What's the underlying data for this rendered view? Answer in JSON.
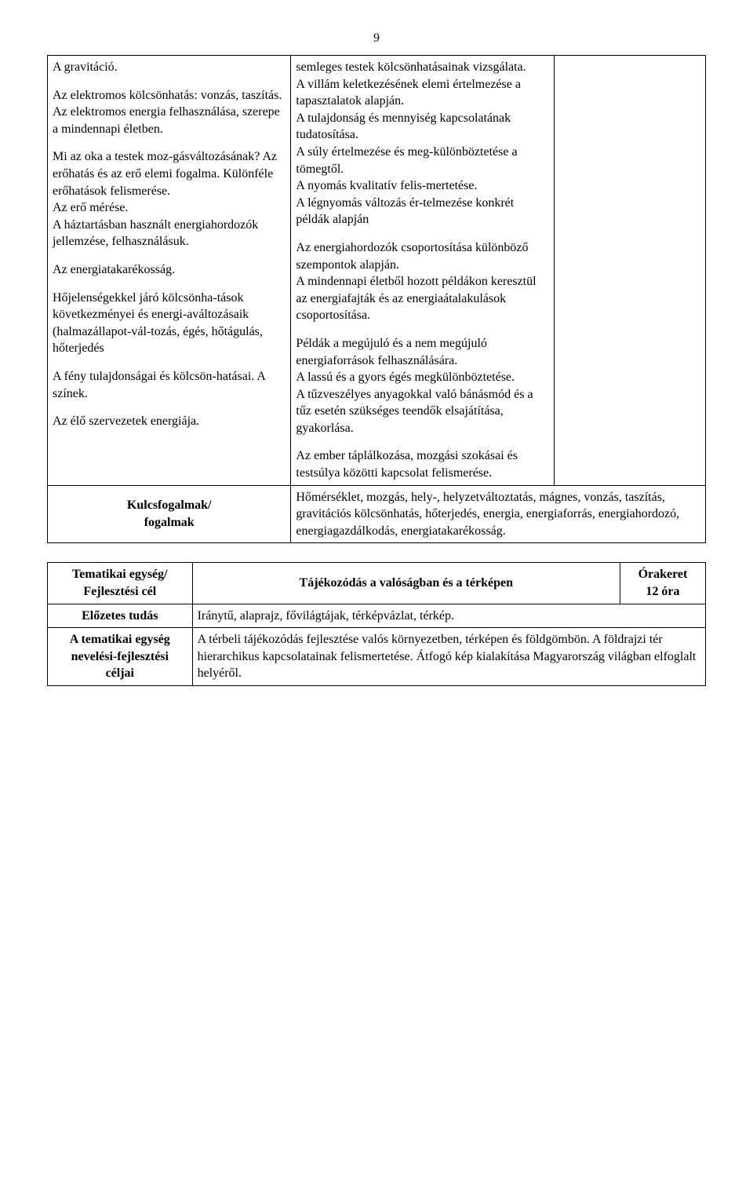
{
  "page_number": "9",
  "main_table": {
    "col1": {
      "p1": "A gravitáció.",
      "p2": "Az elektromos kölcsönhatás: vonzás, taszítás. Az elektromos energia felhasználása, szerepe a mindennapi életben.",
      "p3": "Mi az oka a testek moz-gásváltozásának? Az erőhatás és az erő elemi fogalma. Különféle erőhatások felismerése.",
      "p4": "Az erő mérése.",
      "p5": "A háztartásban használt energiahordozók jellemzése, felhasználásuk.",
      "p6": "Az energiatakarékosság.",
      "p7": "Hőjelenségekkel járó kölcsönha-tások következményei és energi-aváltozásaik (halmazállapot-vál-tozás, égés, hőtágulás, hőterjedés",
      "p8": "A fény tulajdonságai és kölcsön-hatásai. A színek.",
      "p9": "Az élő szervezetek energiája."
    },
    "col2": {
      "p1": "semleges testek kölcsönhatásainak vizsgálata.",
      "p2": "A villám keletkezésének elemi értelmezése a tapasztalatok alapján.",
      "p3": "A tulajdonság és mennyiség kapcsolatának tudatosítása.",
      "p4": "A súly értelmezése és meg-különböztetése a tömegtől.",
      "p5": "A nyomás kvalitatív felis-mertetése.",
      "p6": "A légnyomás változás ér-telmezése konkrét példák alapján",
      "p7": "Az energiahordozók csoportosítása különböző szempontok alapján.",
      "p8": "A mindennapi életből hozott példákon keresztül az energiafajták és az energiaátalakulások csoportosítása.",
      "p9": "Példák a megújuló és a nem megújuló energiaforrások felhasználására.",
      "p10": "A lassú és a gyors égés megkülönböztetése.",
      "p11": "A tűzveszélyes anyagokkal való bánásmód és a tűz esetén szükséges teendők elsajátítása, gyakorlása.",
      "p12": "Az ember táplálkozása, mozgási szokásai és testsúlya közötti kapcsolat felismerése."
    },
    "kf_label_line1": "Kulcsfogalmak/",
    "kf_label_line2": "fogalmak",
    "kf_content": "Hőmérséklet, mozgás, hely-, helyzetváltoztatás, mágnes, vonzás, taszítás, gravitációs kölcsönhatás, hőterjedés, energia, energiaforrás, energiahordozó, energiagazdálkodás, energiatakarékosság."
  },
  "second_table": {
    "r1c1_line1": "Tematikai egység/",
    "r1c1_line2": "Fejlesztési cél",
    "r1c2": "Tájékozódás a valóságban és a térképen",
    "r1c3_line1": "Órakeret",
    "r1c3_line2": "12 óra",
    "r2c1": "Előzetes tudás",
    "r2c2": "Iránytű, alaprajz, fővilágtájak, térképvázlat, térkép.",
    "r3c1_line1": "A tematikai egység",
    "r3c1_line2": "nevelési-fejlesztési",
    "r3c1_line3": "céljai",
    "r3c2": "A térbeli tájékozódás fejlesztése valós környezetben, térképen és földgömbön. A földrajzi tér hierarchikus kapcsolatainak felismertetése. Átfogó kép kialakítása Magyarország világban elfoglalt helyéről."
  }
}
